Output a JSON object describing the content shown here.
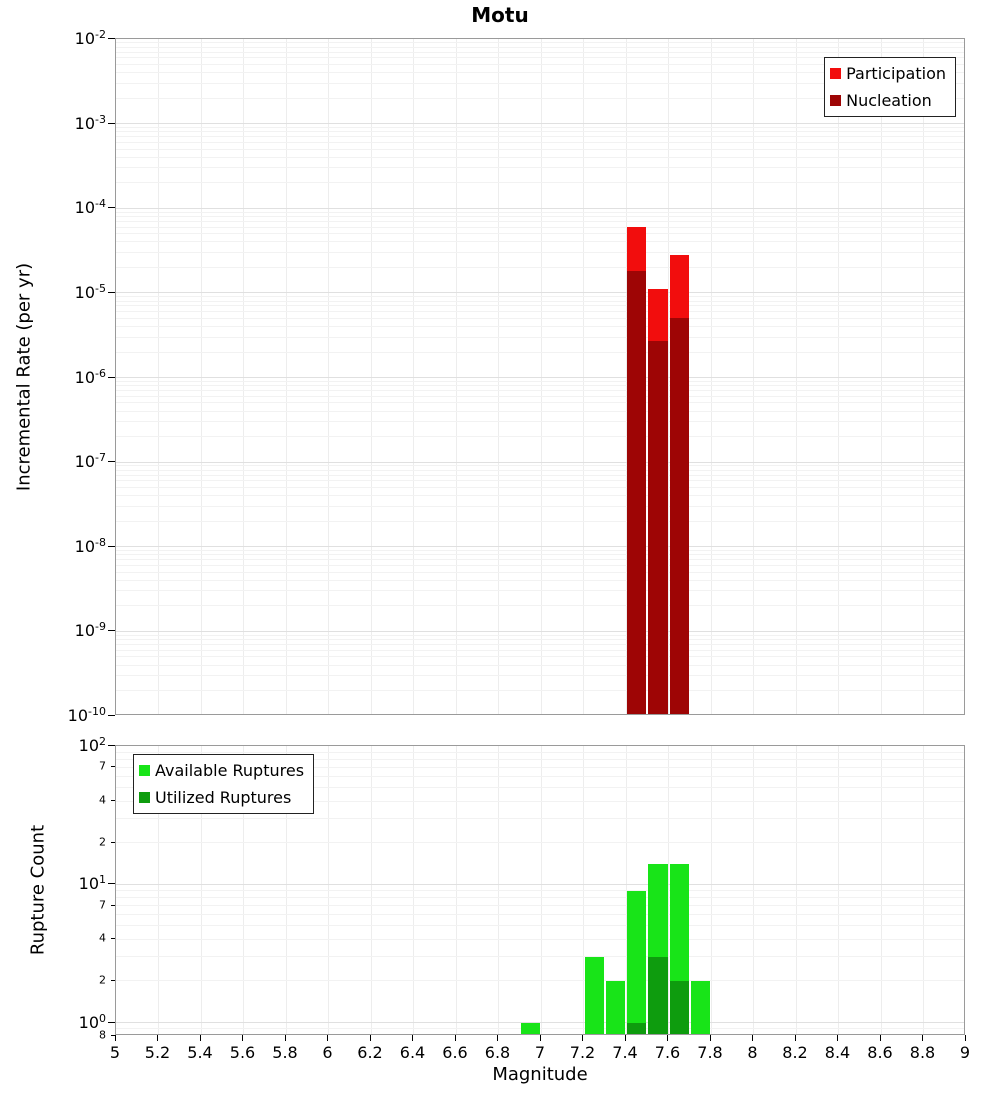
{
  "title": "Motu",
  "chart_data": [
    {
      "type": "bar",
      "title": "Motu",
      "ylabel": "Incremental Rate (per yr)",
      "yscale": "log",
      "ylim": [
        1e-10,
        0.01
      ],
      "xlim": [
        5,
        9
      ],
      "bin_width": 0.1,
      "grid": true,
      "legend_position": "top-right",
      "xticks": [
        5,
        5.2,
        5.4,
        5.6,
        5.8,
        6,
        6.2,
        6.4,
        6.6,
        6.8,
        7,
        7.2,
        7.4,
        7.6,
        7.8,
        8,
        8.2,
        8.4,
        8.6,
        8.8,
        9
      ],
      "yticks": [
        0.01,
        0.001,
        0.0001,
        1e-05,
        1e-06,
        1e-07,
        1e-08,
        1e-09,
        1e-10
      ],
      "series": [
        {
          "name": "Participation",
          "color": "#f20d0d",
          "bins": [
            {
              "x": 7.45,
              "y": 6e-05
            },
            {
              "x": 7.55,
              "y": 1.1e-05
            },
            {
              "x": 7.65,
              "y": 2.8e-05
            }
          ]
        },
        {
          "name": "Nucleation",
          "color": "#9e0505",
          "bins": [
            {
              "x": 7.45,
              "y": 1.8e-05
            },
            {
              "x": 7.55,
              "y": 2.7e-06
            },
            {
              "x": 7.65,
              "y": 5e-06
            }
          ]
        }
      ]
    },
    {
      "type": "bar",
      "ylabel": "Rupture Count",
      "xlabel": "Magnitude",
      "yscale": "log",
      "ylim": [
        0.8,
        100
      ],
      "xlim": [
        5,
        9
      ],
      "bin_width": 0.1,
      "grid": true,
      "legend_position": "top-left",
      "xticks": [
        5,
        5.2,
        5.4,
        5.6,
        5.8,
        6,
        6.2,
        6.4,
        6.6,
        6.8,
        7,
        7.2,
        7.4,
        7.6,
        7.8,
        8,
        8.2,
        8.4,
        8.6,
        8.8,
        9
      ],
      "yticks": [
        100,
        70,
        40,
        20,
        10,
        7,
        4,
        2,
        1,
        0.8
      ],
      "series": [
        {
          "name": "Available Ruptures",
          "color": "#18e418",
          "bins": [
            {
              "x": 6.95,
              "y": 1
            },
            {
              "x": 7.25,
              "y": 3
            },
            {
              "x": 7.35,
              "y": 2
            },
            {
              "x": 7.45,
              "y": 9
            },
            {
              "x": 7.55,
              "y": 14
            },
            {
              "x": 7.65,
              "y": 14
            },
            {
              "x": 7.75,
              "y": 2
            }
          ]
        },
        {
          "name": "Utilized Ruptures",
          "color": "#0e9c0e",
          "bins": [
            {
              "x": 7.45,
              "y": 1
            },
            {
              "x": 7.55,
              "y": 3
            },
            {
              "x": 7.65,
              "y": 2
            }
          ]
        }
      ]
    }
  ]
}
